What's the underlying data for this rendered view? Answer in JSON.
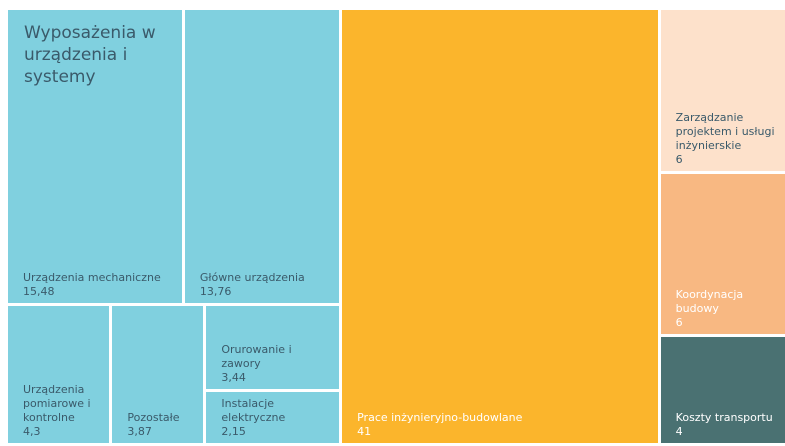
{
  "chart_data": {
    "type": "treemap",
    "group": {
      "name": "Wyposażenia w urządzenia i systemy",
      "color": "#80d0df",
      "categories": [
        "Urządzenia mechaniczne",
        "Główne urządzenia",
        "Urządzenia pomiarowe i kontrolne",
        "Pozostałe",
        "Orurowanie i zawory",
        "Instalacje elektryczne"
      ],
      "values": [
        15.48,
        13.76,
        4.3,
        3.87,
        3.44,
        2.15
      ],
      "value_labels": [
        "15,48",
        "13,76",
        "4,3",
        "3,87",
        "3,44",
        "2,15"
      ]
    },
    "categories": [
      "Prace inżynieryjno-budowlane",
      "Zarządzanie projektem i usługi inżynierskie",
      "Koordynacja budowy",
      "Koszty transportu"
    ],
    "values": [
      41,
      6,
      6,
      4
    ],
    "colors": [
      "#fbb52c",
      "#fde1cb",
      "#f8b882",
      "#4a7172"
    ]
  }
}
